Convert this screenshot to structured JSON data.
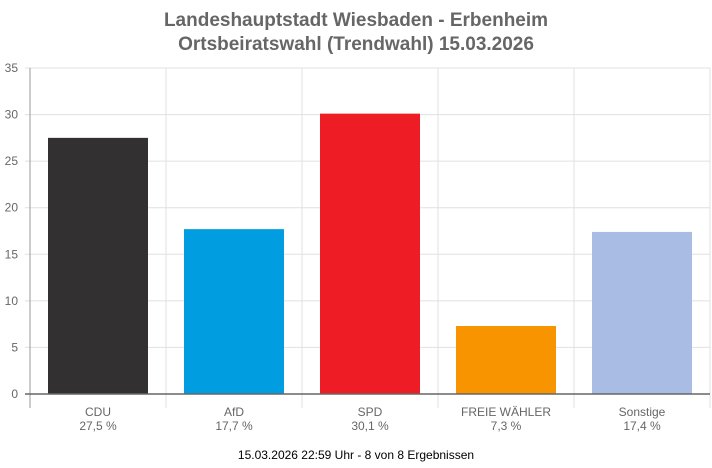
{
  "chart_data": {
    "type": "bar",
    "title": [
      "Landeshauptstadt Wiesbaden - Erbenheim",
      "Ortsbeiratswahl (Trendwahl) 15.03.2026"
    ],
    "categories": [
      "CDU",
      "AfD",
      "SPD",
      "FREIE WÄHLER",
      "Sonstige"
    ],
    "values": [
      27.5,
      17.7,
      30.1,
      7.3,
      17.4
    ],
    "value_labels": [
      "27,5 %",
      "17,7 %",
      "30,1 %",
      "7,3 %",
      "17,4 %"
    ],
    "colors": [
      "#323031",
      "#009ee0",
      "#ee1c25",
      "#f79400",
      "#a9bde4"
    ],
    "ylim": [
      0,
      35
    ],
    "yticks": [
      0,
      5,
      10,
      15,
      20,
      25,
      30,
      35
    ],
    "grid": true,
    "xlabel": "",
    "ylabel": ""
  },
  "footer": "15.03.2026 22:59 Uhr - 8 von 8 Ergebnissen"
}
